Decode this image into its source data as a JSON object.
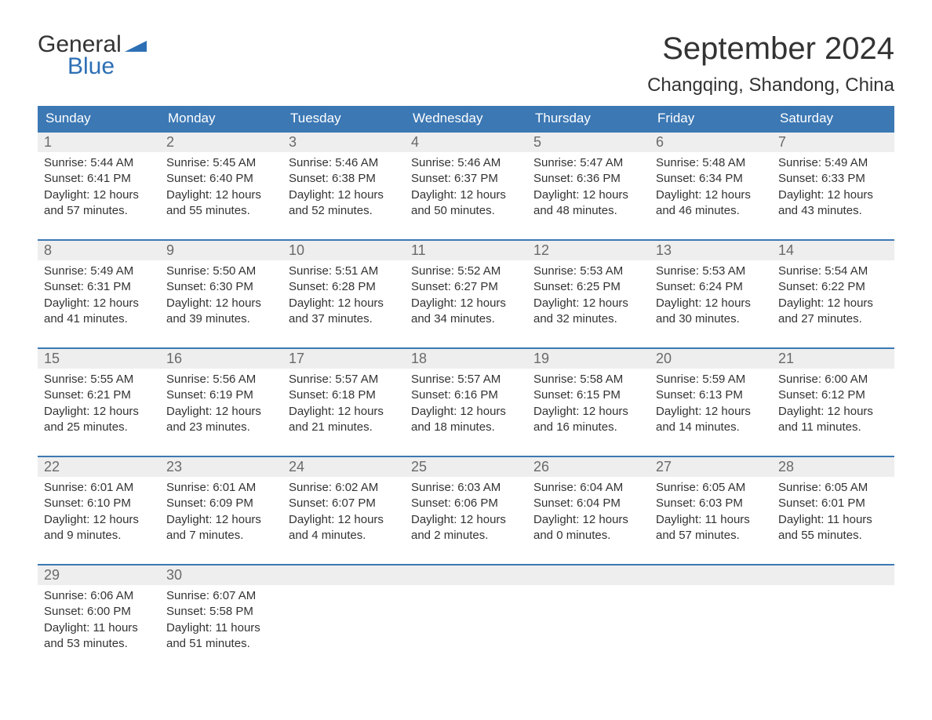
{
  "brand": {
    "word1": "General",
    "word2": "Blue",
    "color": "#2d6fb5"
  },
  "header": {
    "month_title": "September 2024",
    "location": "Changqing, Shandong, China"
  },
  "theme": {
    "header_bg": "#3c78b4",
    "header_text": "#ffffff",
    "daynum_bg": "#eeeeee",
    "daynum_text": "#6a6a6a",
    "body_text": "#333333",
    "rule_color": "#3c78b4",
    "page_bg": "#ffffff"
  },
  "weekdays": [
    "Sunday",
    "Monday",
    "Tuesday",
    "Wednesday",
    "Thursday",
    "Friday",
    "Saturday"
  ],
  "days": [
    {
      "n": 1,
      "sr": "5:44 AM",
      "ss": "6:41 PM",
      "dl": "12 hours and 57 minutes."
    },
    {
      "n": 2,
      "sr": "5:45 AM",
      "ss": "6:40 PM",
      "dl": "12 hours and 55 minutes."
    },
    {
      "n": 3,
      "sr": "5:46 AM",
      "ss": "6:38 PM",
      "dl": "12 hours and 52 minutes."
    },
    {
      "n": 4,
      "sr": "5:46 AM",
      "ss": "6:37 PM",
      "dl": "12 hours and 50 minutes."
    },
    {
      "n": 5,
      "sr": "5:47 AM",
      "ss": "6:36 PM",
      "dl": "12 hours and 48 minutes."
    },
    {
      "n": 6,
      "sr": "5:48 AM",
      "ss": "6:34 PM",
      "dl": "12 hours and 46 minutes."
    },
    {
      "n": 7,
      "sr": "5:49 AM",
      "ss": "6:33 PM",
      "dl": "12 hours and 43 minutes."
    },
    {
      "n": 8,
      "sr": "5:49 AM",
      "ss": "6:31 PM",
      "dl": "12 hours and 41 minutes."
    },
    {
      "n": 9,
      "sr": "5:50 AM",
      "ss": "6:30 PM",
      "dl": "12 hours and 39 minutes."
    },
    {
      "n": 10,
      "sr": "5:51 AM",
      "ss": "6:28 PM",
      "dl": "12 hours and 37 minutes."
    },
    {
      "n": 11,
      "sr": "5:52 AM",
      "ss": "6:27 PM",
      "dl": "12 hours and 34 minutes."
    },
    {
      "n": 12,
      "sr": "5:53 AM",
      "ss": "6:25 PM",
      "dl": "12 hours and 32 minutes."
    },
    {
      "n": 13,
      "sr": "5:53 AM",
      "ss": "6:24 PM",
      "dl": "12 hours and 30 minutes."
    },
    {
      "n": 14,
      "sr": "5:54 AM",
      "ss": "6:22 PM",
      "dl": "12 hours and 27 minutes."
    },
    {
      "n": 15,
      "sr": "5:55 AM",
      "ss": "6:21 PM",
      "dl": "12 hours and 25 minutes."
    },
    {
      "n": 16,
      "sr": "5:56 AM",
      "ss": "6:19 PM",
      "dl": "12 hours and 23 minutes."
    },
    {
      "n": 17,
      "sr": "5:57 AM",
      "ss": "6:18 PM",
      "dl": "12 hours and 21 minutes."
    },
    {
      "n": 18,
      "sr": "5:57 AM",
      "ss": "6:16 PM",
      "dl": "12 hours and 18 minutes."
    },
    {
      "n": 19,
      "sr": "5:58 AM",
      "ss": "6:15 PM",
      "dl": "12 hours and 16 minutes."
    },
    {
      "n": 20,
      "sr": "5:59 AM",
      "ss": "6:13 PM",
      "dl": "12 hours and 14 minutes."
    },
    {
      "n": 21,
      "sr": "6:00 AM",
      "ss": "6:12 PM",
      "dl": "12 hours and 11 minutes."
    },
    {
      "n": 22,
      "sr": "6:01 AM",
      "ss": "6:10 PM",
      "dl": "12 hours and 9 minutes."
    },
    {
      "n": 23,
      "sr": "6:01 AM",
      "ss": "6:09 PM",
      "dl": "12 hours and 7 minutes."
    },
    {
      "n": 24,
      "sr": "6:02 AM",
      "ss": "6:07 PM",
      "dl": "12 hours and 4 minutes."
    },
    {
      "n": 25,
      "sr": "6:03 AM",
      "ss": "6:06 PM",
      "dl": "12 hours and 2 minutes."
    },
    {
      "n": 26,
      "sr": "6:04 AM",
      "ss": "6:04 PM",
      "dl": "12 hours and 0 minutes."
    },
    {
      "n": 27,
      "sr": "6:05 AM",
      "ss": "6:03 PM",
      "dl": "11 hours and 57 minutes."
    },
    {
      "n": 28,
      "sr": "6:05 AM",
      "ss": "6:01 PM",
      "dl": "11 hours and 55 minutes."
    },
    {
      "n": 29,
      "sr": "6:06 AM",
      "ss": "6:00 PM",
      "dl": "11 hours and 53 minutes."
    },
    {
      "n": 30,
      "sr": "6:07 AM",
      "ss": "5:58 PM",
      "dl": "11 hours and 51 minutes."
    }
  ],
  "labels": {
    "sunrise": "Sunrise:",
    "sunset": "Sunset:",
    "daylight": "Daylight:"
  }
}
